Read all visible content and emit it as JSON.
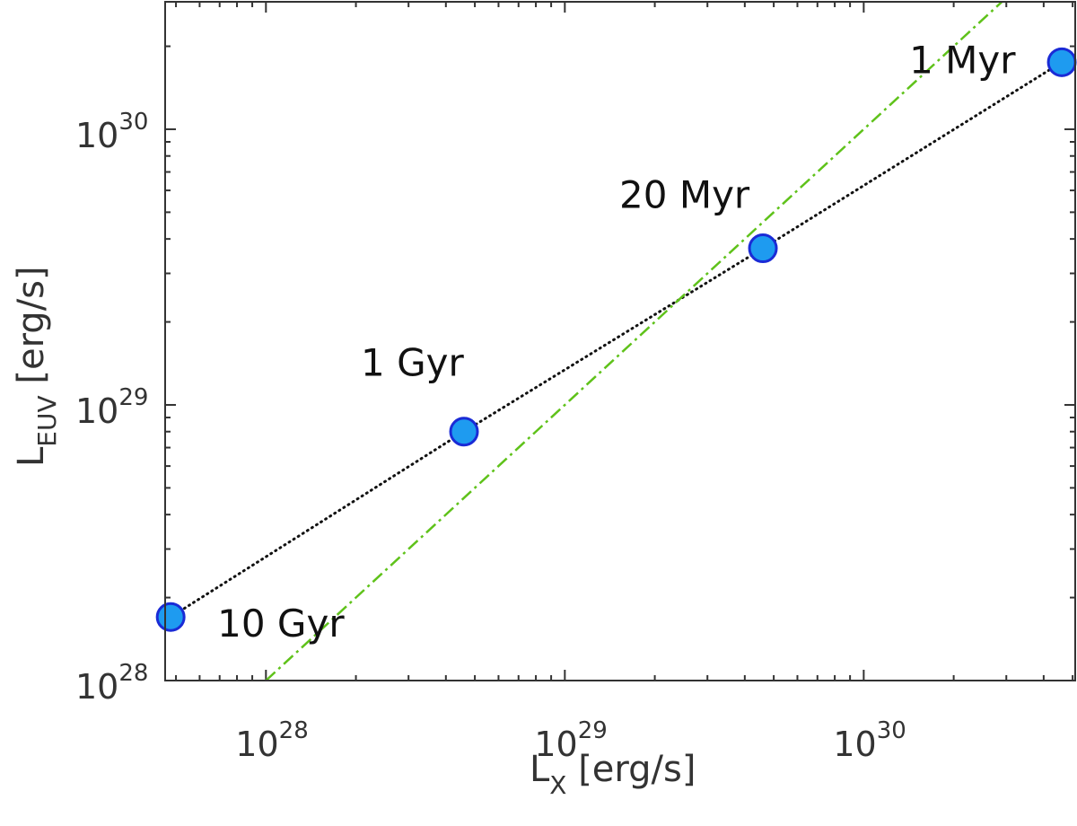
{
  "chart_data": {
    "type": "scatter",
    "xscale": "log",
    "yscale": "log",
    "xlim": [
      4.6e+27,
      5.1e+30
    ],
    "ylim": [
      1e+28,
      2.9e+30
    ],
    "xlabel": {
      "main": "L",
      "sub": "X",
      "unit": " [erg/s]"
    },
    "ylabel": {
      "main": "L",
      "sub": "EUV",
      "unit": " [erg/s]"
    },
    "xticks": [
      {
        "value": 1e+28,
        "base": "10",
        "exp": "28"
      },
      {
        "value": 1e+29,
        "base": "10",
        "exp": "29"
      },
      {
        "value": 1e+30,
        "base": "10",
        "exp": "30"
      }
    ],
    "yticks": [
      {
        "value": 1e+28,
        "base": "10",
        "exp": "28"
      },
      {
        "value": 1e+29,
        "base": "10",
        "exp": "29"
      },
      {
        "value": 1e+30,
        "base": "10",
        "exp": "30"
      }
    ],
    "points": [
      {
        "label": "10 Gyr",
        "x": 4.8e+27,
        "y": 1.7e+28,
        "label_pos": "right-below"
      },
      {
        "label": "1 Gyr",
        "x": 4.6e+28,
        "y": 8e+28,
        "label_pos": "above-left"
      },
      {
        "label": "20 Myr",
        "x": 4.6e+29,
        "y": 3.7e+29,
        "label_pos": "above-left"
      },
      {
        "label": "1 Myr",
        "x": 4.6e+30,
        "y": 1.75e+30,
        "label_pos": "left"
      }
    ],
    "series": [
      {
        "style": "dotted",
        "color": "#111111",
        "connects": "points"
      },
      {
        "style": "dash-dot",
        "color": "#5fc21a",
        "x": [
          1e+28,
          3.1e+30
        ],
        "y": [
          1e+28,
          3.1e+30
        ]
      }
    ],
    "marker": {
      "fill": "#1e9bf0",
      "stroke": "#1a2bd6"
    },
    "grid": false,
    "box": true
  }
}
